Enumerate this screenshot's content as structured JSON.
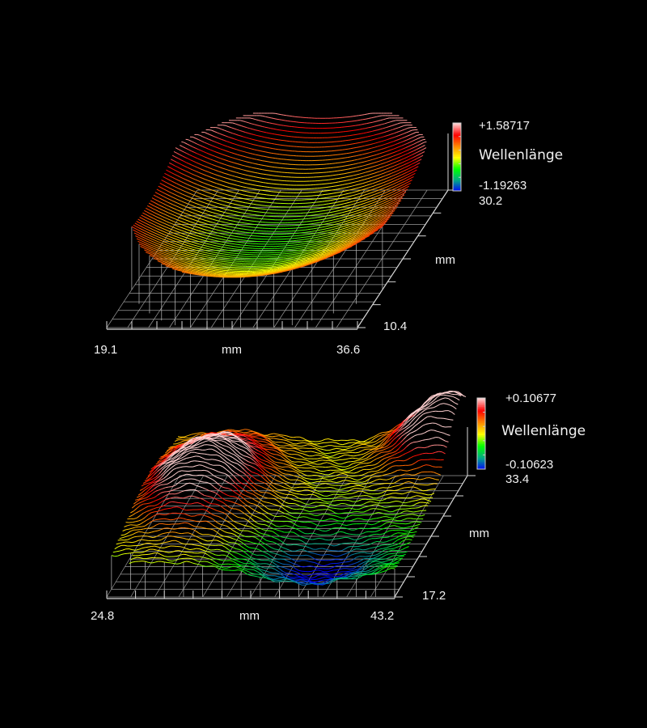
{
  "colors": {
    "background": "#000000",
    "axis": "#d8d8d8",
    "colormap": [
      "#0000ff",
      "#00aa88",
      "#00ff00",
      "#ffff00",
      "#ff8800",
      "#ff0000",
      "#ffd0d0"
    ]
  },
  "chart_data": [
    {
      "type": "surface-3d",
      "title": "",
      "colorbar": {
        "label": "Wellenlänge",
        "max": "+1.58717",
        "min": "-1.19263"
      },
      "x_axis": {
        "label": "mm",
        "min": "19.1",
        "max": "36.6",
        "range": [
          19.1,
          36.6
        ]
      },
      "y_axis": {
        "label": "mm",
        "min": "10.4",
        "max": "30.2",
        "range": [
          10.4,
          30.2
        ]
      },
      "z_range": [
        -1.19263,
        1.58717
      ],
      "surface_shape": "bowl: elliptical aperture, height rising from a minimum at the front edge to a maximum at the back rim"
    },
    {
      "type": "surface-3d",
      "title": "",
      "colorbar": {
        "label": "Wellenlänge",
        "max": "+0.10677",
        "min": "-0.10623"
      },
      "x_axis": {
        "label": "mm",
        "min": "24.8",
        "max": "43.2",
        "range": [
          24.8,
          43.2
        ]
      },
      "y_axis": {
        "label": "mm",
        "min": "17.2",
        "max": "33.4",
        "range": [
          17.2,
          33.4
        ]
      },
      "z_range": [
        -0.10623,
        0.10677
      ],
      "surface_shape": "noisy residual: high ridge at left and back-right corner, low region at front right"
    }
  ]
}
